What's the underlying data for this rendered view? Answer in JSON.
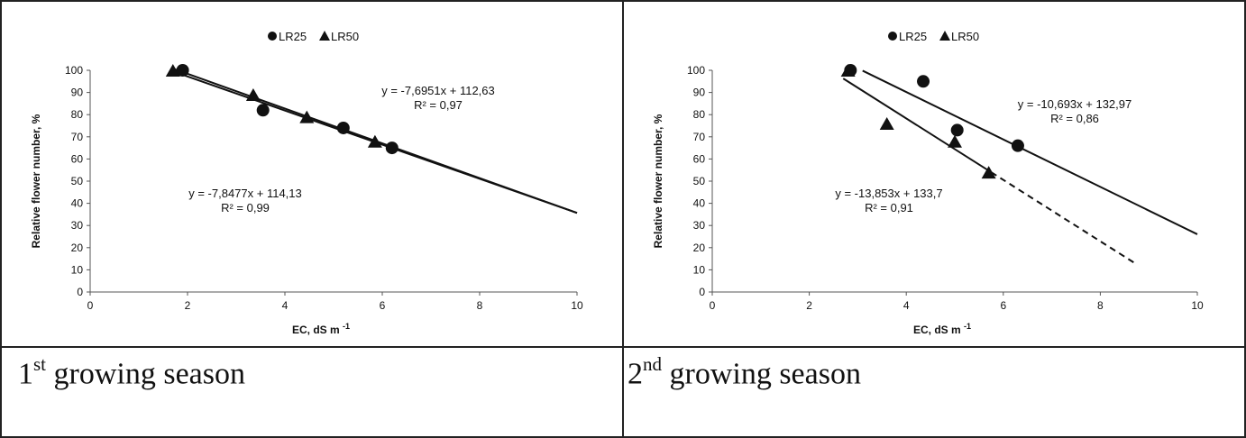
{
  "panels": [
    {
      "id": "panel-1",
      "caption": {
        "number": "1",
        "suffix": "st",
        "text": "growing season"
      },
      "chart_data": {
        "type": "scatter",
        "xlabel": "EC, dS m",
        "xlabel_superscript": "-1",
        "ylabel": "Relative flower number, %",
        "xlim": [
          0,
          10
        ],
        "ylim": [
          0,
          100
        ],
        "xticks": [
          0,
          2,
          4,
          6,
          8,
          10
        ],
        "yticks": [
          0,
          10,
          20,
          30,
          40,
          50,
          60,
          70,
          80,
          90,
          100
        ],
        "legend": {
          "placement": "top-center",
          "entries": [
            "LR25",
            "LR50"
          ]
        },
        "grid": false,
        "series": [
          {
            "name": "LR25",
            "marker": "circle",
            "points": [
              [
                1.9,
                100
              ],
              [
                3.55,
                82
              ],
              [
                5.2,
                74
              ],
              [
                6.2,
                65
              ]
            ],
            "trend": {
              "slope": -7.6951,
              "intercept": 112.63,
              "x_solid": [
                1.9,
                10
              ],
              "x_dashed": null
            },
            "equation": "y = -7,6951x + 112,63",
            "r2": "R² = 0,97"
          },
          {
            "name": "LR50",
            "marker": "triangle",
            "points": [
              [
                1.7,
                100
              ],
              [
                3.35,
                89
              ],
              [
                4.45,
                79
              ],
              [
                5.85,
                68
              ]
            ],
            "trend": {
              "slope": -7.8477,
              "intercept": 114.13,
              "x_solid": [
                1.7,
                10
              ],
              "x_dashed": null
            },
            "equation": "y = -7,8477x + 114,13",
            "r2": "R² = 0,99"
          }
        ]
      }
    },
    {
      "id": "panel-2",
      "caption": {
        "number": "2",
        "suffix": "nd",
        "text": "growing season"
      },
      "chart_data": {
        "type": "scatter",
        "xlabel": "EC, dS m",
        "xlabel_superscript": "-1",
        "ylabel": "Relative flower number, %",
        "xlim": [
          0,
          10
        ],
        "ylim": [
          0,
          100
        ],
        "xticks": [
          0,
          2,
          4,
          6,
          8,
          10
        ],
        "yticks": [
          0,
          10,
          20,
          30,
          40,
          50,
          60,
          70,
          80,
          90,
          100
        ],
        "legend": {
          "placement": "top-center",
          "entries": [
            "LR25",
            "LR50"
          ]
        },
        "grid": false,
        "series": [
          {
            "name": "LR25",
            "marker": "circle",
            "points": [
              [
                2.85,
                100
              ],
              [
                4.35,
                95
              ],
              [
                5.05,
                73
              ],
              [
                6.3,
                66
              ]
            ],
            "trend": {
              "slope": -10.693,
              "intercept": 132.97,
              "x_solid": [
                3.1,
                10
              ],
              "x_dashed": null
            },
            "equation": "y = -10,693x + 132,97",
            "r2": "R² = 0,86"
          },
          {
            "name": "LR50",
            "marker": "triangle",
            "points": [
              [
                2.8,
                100
              ],
              [
                3.6,
                76
              ],
              [
                5.0,
                68
              ],
              [
                5.7,
                54
              ]
            ],
            "trend": {
              "slope": -13.853,
              "intercept": 133.7,
              "x_solid": [
                2.7,
                5.75
              ],
              "x_dashed": [
                5.75,
                8.7
              ]
            },
            "equation": "y = -13,853x + 133,7",
            "r2": "R² = 0,91"
          }
        ]
      }
    }
  ]
}
